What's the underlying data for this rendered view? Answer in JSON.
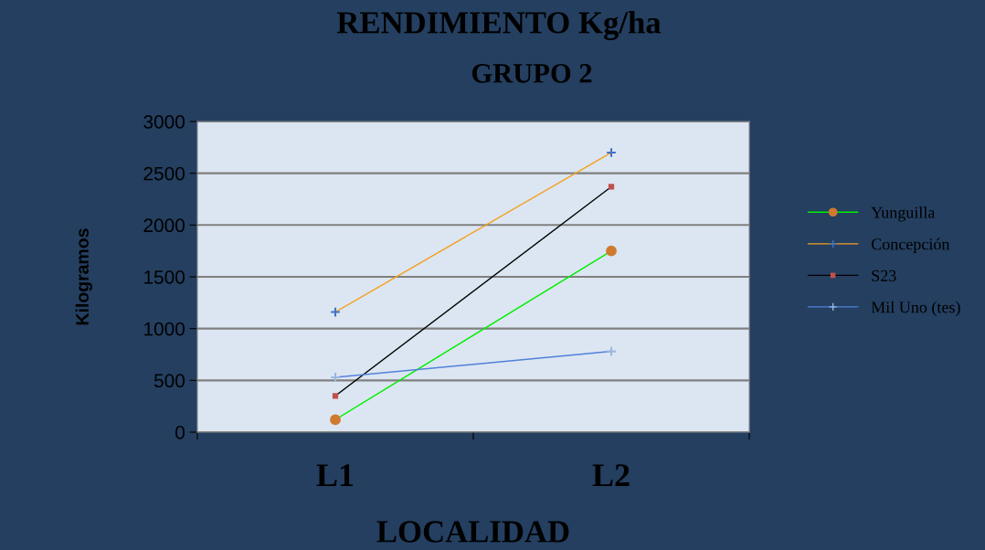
{
  "chart_data": {
    "type": "line",
    "title": "RENDIMIENTO Kg/ha",
    "subtitle": "GRUPO 2",
    "xlabel": "LOCALIDAD",
    "ylabel": "Kilogramos",
    "categories": [
      "L1",
      "L2"
    ],
    "series": [
      {
        "name": "Yunguilla",
        "color": "#00ee00",
        "colors": [
          "#d07a30",
          "#d07a30"
        ],
        "marker": "circle",
        "values": [
          120,
          1750
        ]
      },
      {
        "name": "Concepción",
        "color": "#f5a020",
        "colors": [
          "#4472c4",
          "#4472c4"
        ],
        "marker": "cross",
        "values": [
          1160,
          2700
        ]
      },
      {
        "name": "S23",
        "color": "#000000",
        "colors": [
          "#c0504d",
          "#c0504d"
        ],
        "marker": "square",
        "values": [
          350,
          2370
        ]
      },
      {
        "name": "Mil Uno (tes)",
        "color": "#4f81d9",
        "colors": [
          "#9bb7e0",
          "#9bb7e0"
        ],
        "marker": "cross",
        "values": [
          530,
          780
        ]
      }
    ],
    "ylim": [
      0,
      3000
    ],
    "yticks": [
      0,
      500,
      1000,
      1500,
      2000,
      2500,
      3000
    ],
    "grid": "y",
    "legend": "right"
  }
}
